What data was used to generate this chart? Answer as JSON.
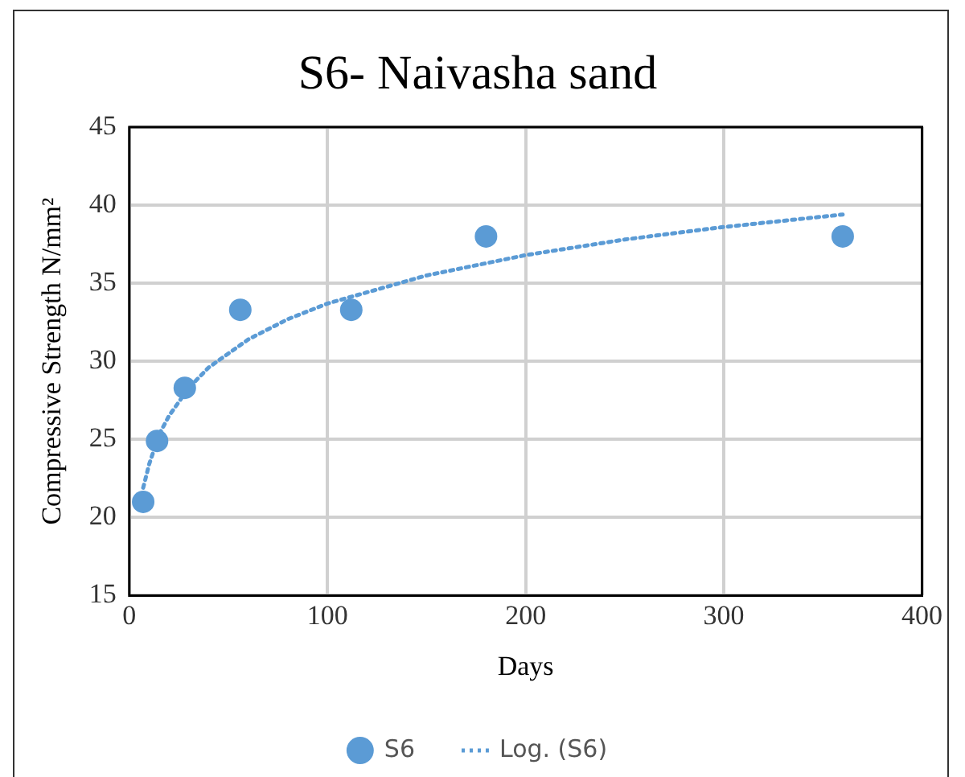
{
  "chart_data": {
    "type": "scatter",
    "title": "S6- Naivasha sand",
    "xlabel": "Days",
    "ylabel": "Compressive Strength N/mm²",
    "xlim": [
      0,
      400
    ],
    "xticks": [
      0,
      100,
      200,
      300,
      400
    ],
    "ylim": [
      15,
      45
    ],
    "yticks": [
      15,
      20,
      25,
      30,
      35,
      40,
      45
    ],
    "grid": true,
    "legend": "bottom",
    "marker": "circle",
    "series": [
      {
        "name": "S6",
        "color": "#5b9bd5",
        "x": [
          7,
          14,
          28,
          56,
          112,
          180,
          360
        ],
        "values": [
          21,
          24.9,
          28.3,
          33.3,
          33.3,
          38,
          38
        ]
      },
      {
        "name": "Log. (S6)",
        "type": "line",
        "line_style": "dotted",
        "marker": "none",
        "color": "#5b9bd5",
        "x": [
          7,
          10,
          15,
          20,
          30,
          40,
          60,
          80,
          100,
          150,
          200,
          250,
          300,
          360
        ],
        "values": [
          21.9,
          23.4,
          25.3,
          26.5,
          28.3,
          29.6,
          31.4,
          32.7,
          33.7,
          35.5,
          36.8,
          37.8,
          38.6,
          39.4
        ]
      }
    ]
  }
}
